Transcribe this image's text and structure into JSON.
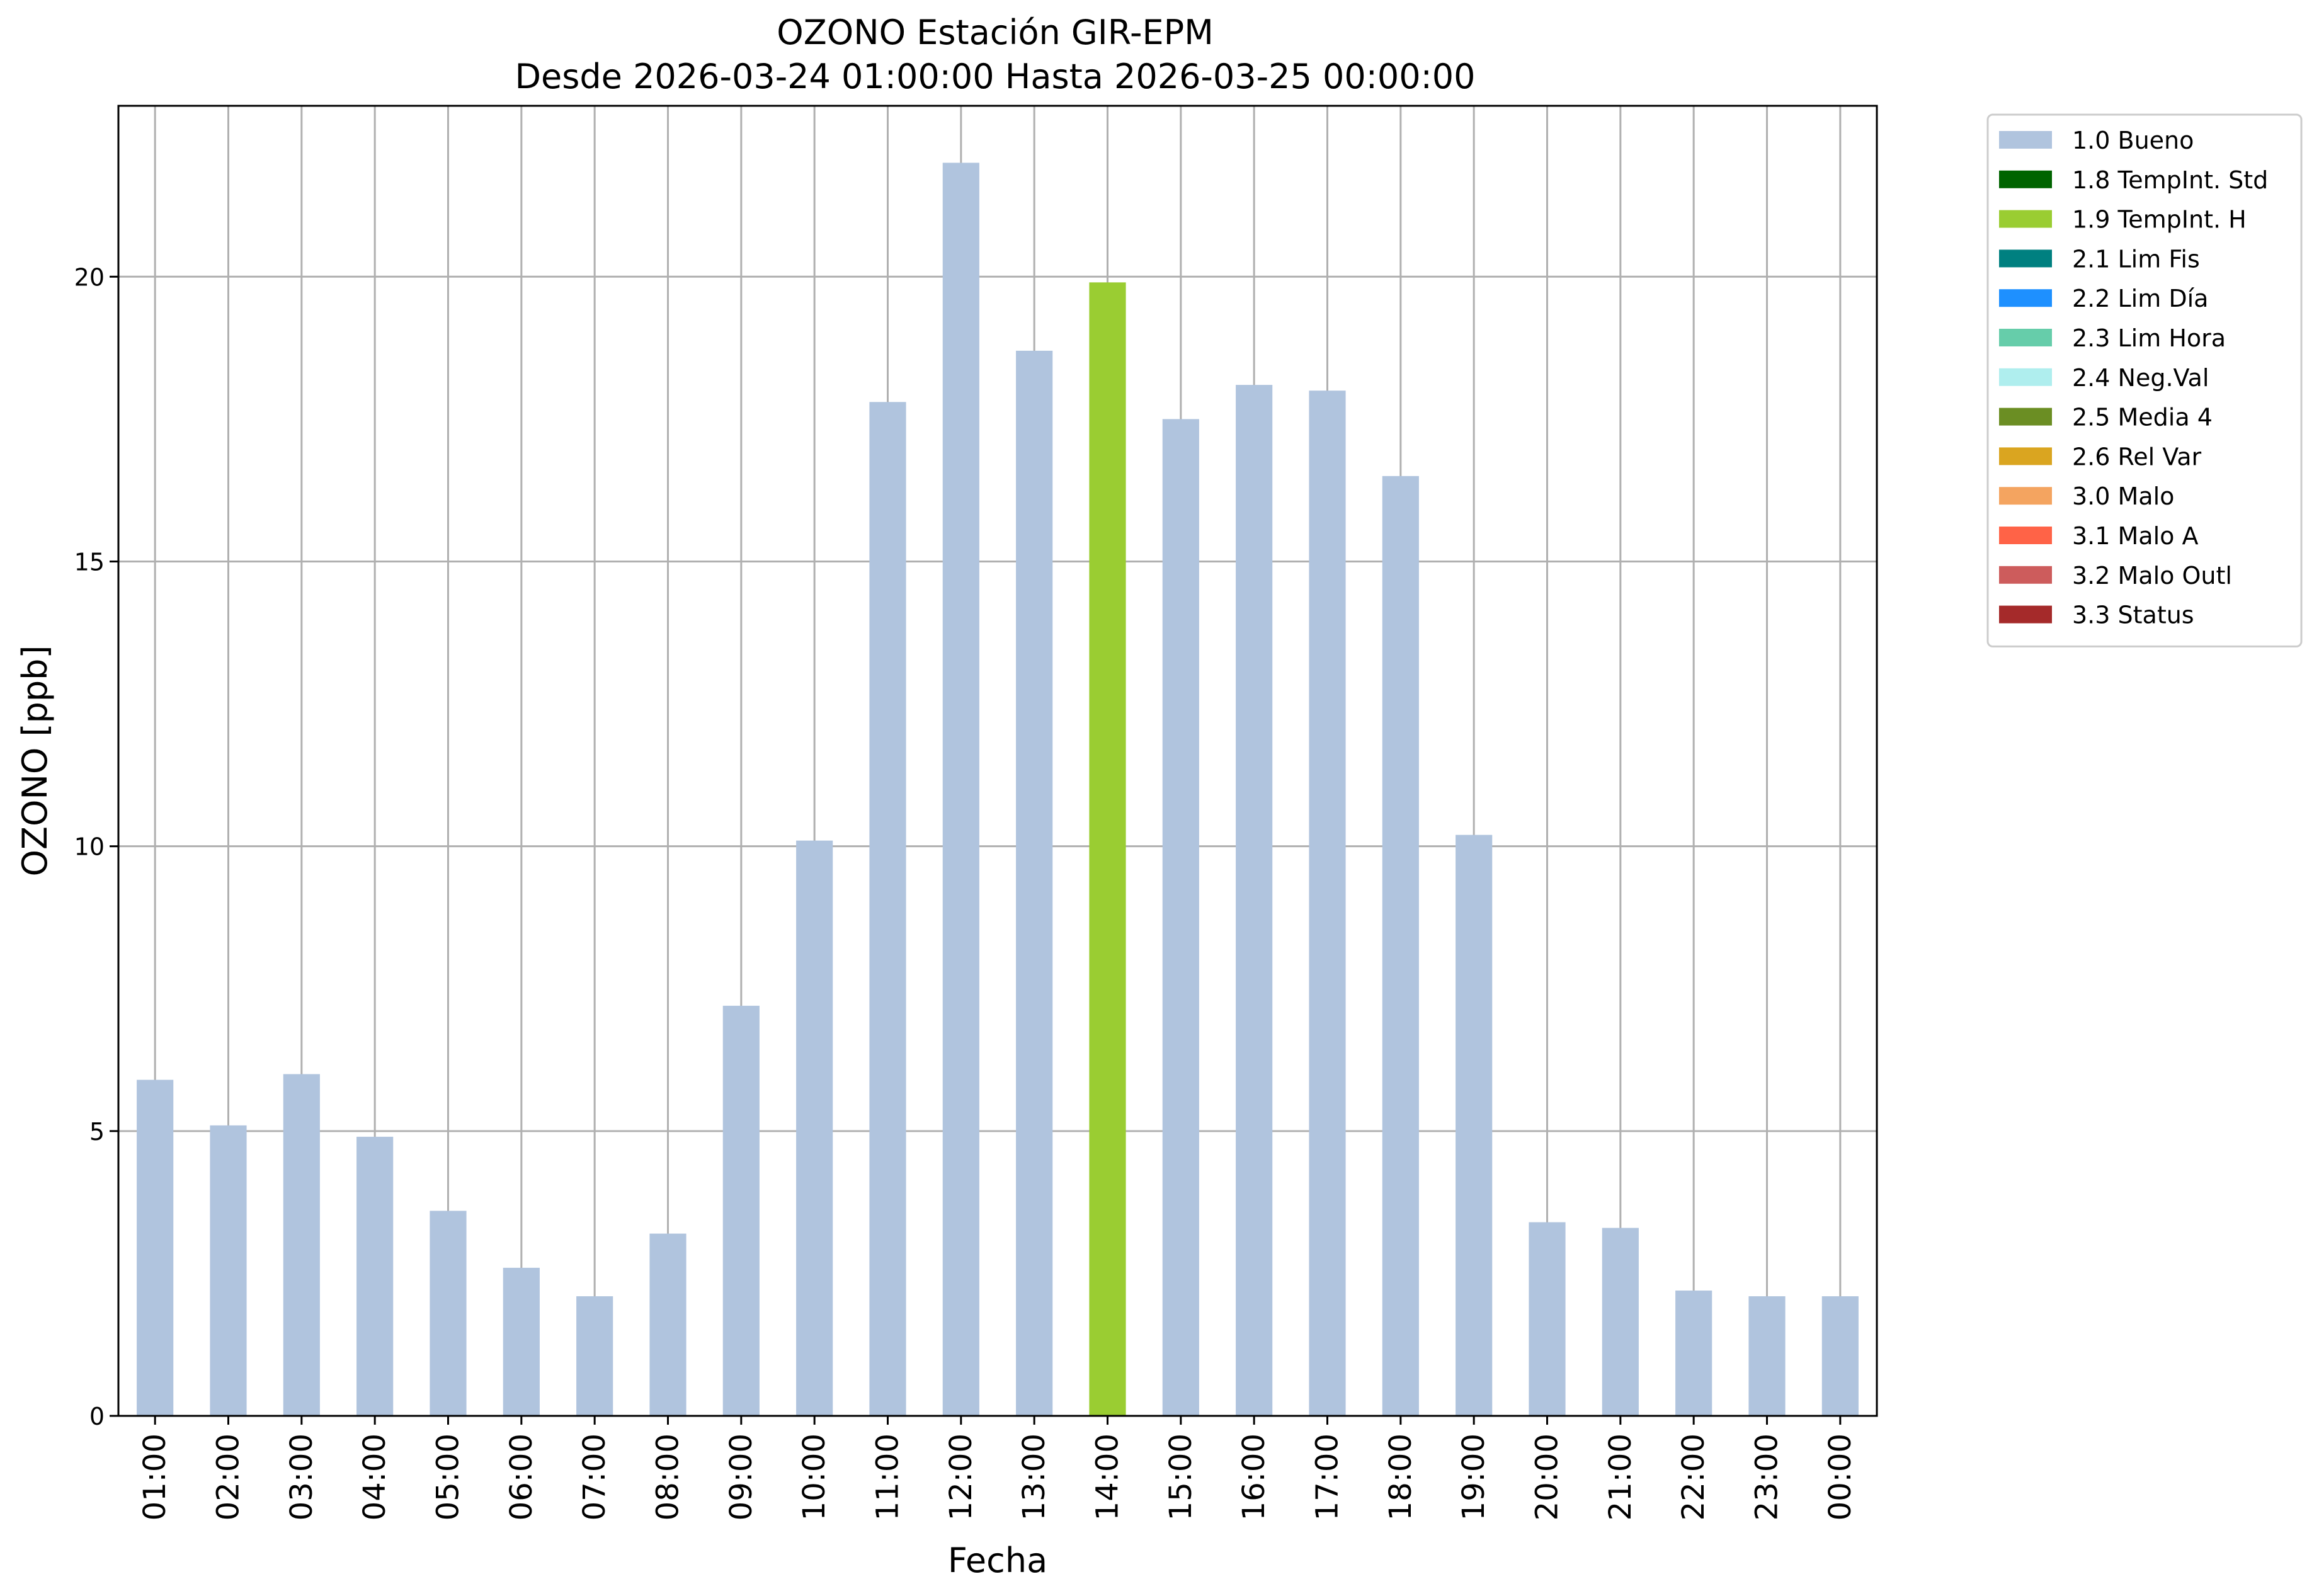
{
  "colors": {
    "background": "#ffffff",
    "grid": "#b0b0b0",
    "axis": "#000000"
  },
  "chart_data": {
    "type": "bar",
    "title": "OZONO Estación GIR-EPM",
    "subtitle": "Desde 2026-03-24 01:00:00 Hasta 2026-03-25 00:00:00",
    "xlabel": "Fecha",
    "ylabel": "OZONO [ppb]",
    "ylim": [
      0,
      23
    ],
    "yticks": [
      0,
      5,
      10,
      15,
      20
    ],
    "grid": true,
    "legend_position": "outside-top-right",
    "categories": [
      "01:00",
      "02:00",
      "03:00",
      "04:00",
      "05:00",
      "06:00",
      "07:00",
      "08:00",
      "09:00",
      "10:00",
      "11:00",
      "12:00",
      "13:00",
      "14:00",
      "15:00",
      "16:00",
      "17:00",
      "18:00",
      "19:00",
      "20:00",
      "21:00",
      "22:00",
      "23:00",
      "00:00"
    ],
    "values": [
      5.9,
      5.1,
      6.0,
      4.9,
      3.6,
      2.6,
      2.1,
      3.2,
      7.2,
      10.1,
      17.8,
      22.0,
      18.7,
      19.9,
      17.5,
      18.1,
      18.0,
      16.5,
      10.2,
      3.4,
      3.3,
      2.2,
      2.1,
      2.1
    ],
    "flags": [
      "1.0 Bueno",
      "1.0 Bueno",
      "1.0 Bueno",
      "1.0 Bueno",
      "1.0 Bueno",
      "1.0 Bueno",
      "1.0 Bueno",
      "1.0 Bueno",
      "1.0 Bueno",
      "1.0 Bueno",
      "1.0 Bueno",
      "1.0 Bueno",
      "1.0 Bueno",
      "1.9 TempInt. H",
      "1.0 Bueno",
      "1.0 Bueno",
      "1.0 Bueno",
      "1.0 Bueno",
      "1.0 Bueno",
      "1.0 Bueno",
      "1.0 Bueno",
      "1.0 Bueno",
      "1.0 Bueno",
      "1.0 Bueno"
    ],
    "legend": [
      {
        "label": "1.0 Bueno",
        "color": "#b0c4de"
      },
      {
        "label": "1.8 TempInt. Std",
        "color": "#006400"
      },
      {
        "label": "1.9 TempInt. H",
        "color": "#9acd32"
      },
      {
        "label": "2.1 Lim Fis",
        "color": "#008080"
      },
      {
        "label": "2.2 Lim Día",
        "color": "#1e90ff"
      },
      {
        "label": "2.3 Lim Hora",
        "color": "#66cdaa"
      },
      {
        "label": "2.4 Neg.Val",
        "color": "#afeeee"
      },
      {
        "label": "2.5 Media 4",
        "color": "#6b8e23"
      },
      {
        "label": "2.6 Rel Var",
        "color": "#daa520"
      },
      {
        "label": "3.0 Malo",
        "color": "#f4a460"
      },
      {
        "label": "3.1 Malo A",
        "color": "#ff6347"
      },
      {
        "label": "3.2 Malo Outl",
        "color": "#cd5c5c"
      },
      {
        "label": "3.3 Status",
        "color": "#a52a2a"
      }
    ]
  }
}
